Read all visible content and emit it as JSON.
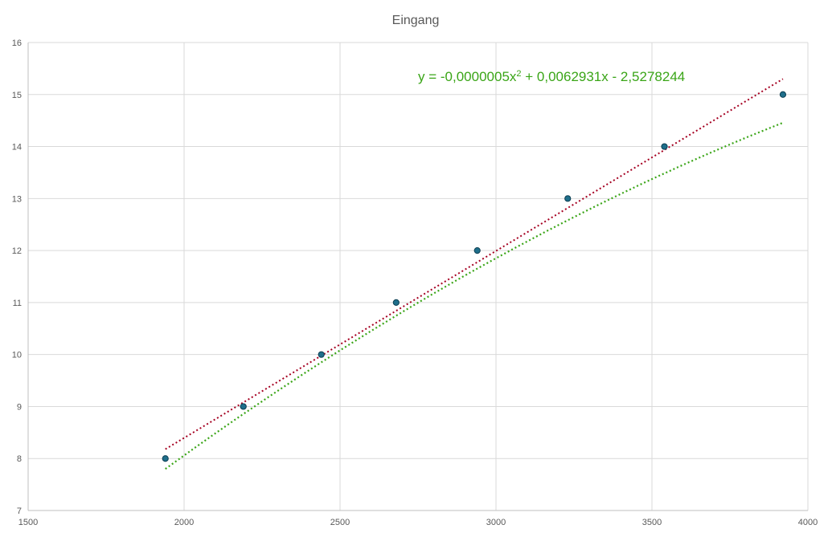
{
  "chart_data": {
    "type": "scatter",
    "title": "Eingang",
    "xlabel": "",
    "ylabel": "",
    "xlim": [
      1500,
      4000
    ],
    "ylim": [
      7,
      16
    ],
    "x_ticks": [
      1500,
      2000,
      2500,
      3000,
      3500,
      4000
    ],
    "y_ticks": [
      7,
      8,
      9,
      10,
      11,
      12,
      13,
      14,
      15,
      16
    ],
    "grid": true,
    "legend": "none",
    "series": [
      {
        "x": [
          1940,
          2190,
          2440,
          2680,
          2940,
          3230,
          3540,
          3920
        ],
        "y": [
          8,
          9,
          10,
          11,
          12,
          13,
          14,
          15
        ],
        "marker_color": "#1f6f8b"
      }
    ],
    "trendlines": [
      {
        "kind": "linear",
        "color": "#a50021",
        "style": "dotted",
        "from": [
          1940,
          8.18
        ],
        "to": [
          3920,
          15.3
        ]
      },
      {
        "kind": "polynomial",
        "order": 2,
        "color": "#3aa517",
        "style": "dotted",
        "coefficients": {
          "a": -5e-07,
          "b": 0.0062931,
          "c": -2.5278244
        },
        "equation_main": "y = -0,0000005x",
        "equation_sup": "2",
        "equation_rest": " + 0,0062931x - 2,5278244",
        "equation_color": "#3aa517"
      }
    ]
  }
}
